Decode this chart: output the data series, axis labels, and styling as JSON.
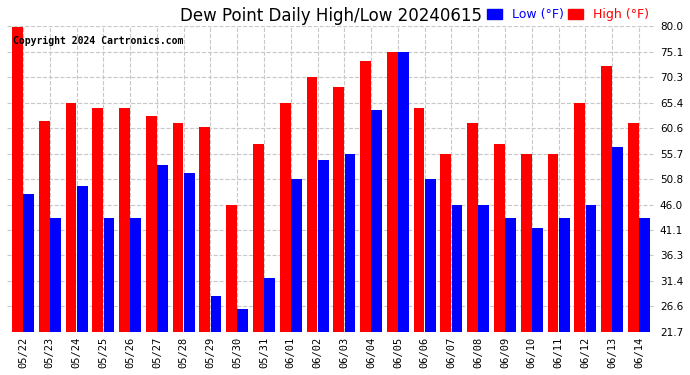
{
  "title": "Dew Point Daily High/Low 20240615",
  "copyright": "Copyright 2024 Cartronics.com",
  "legend_low": "Low (°F)",
  "legend_high": "High (°F)",
  "dates": [
    "05/22",
    "05/23",
    "05/24",
    "05/25",
    "05/26",
    "05/27",
    "05/28",
    "05/29",
    "05/30",
    "05/31",
    "06/01",
    "06/02",
    "06/03",
    "06/04",
    "06/05",
    "06/06",
    "06/07",
    "06/08",
    "06/09",
    "06/10",
    "06/11",
    "06/12",
    "06/13",
    "06/14"
  ],
  "high_values": [
    80.0,
    62.0,
    65.4,
    64.5,
    64.5,
    63.0,
    61.5,
    60.8,
    46.0,
    57.5,
    65.4,
    70.3,
    68.5,
    73.5,
    75.1,
    64.5,
    55.7,
    61.5,
    57.5,
    55.7,
    55.7,
    65.4,
    72.5,
    61.5
  ],
  "low_values": [
    48.0,
    43.5,
    49.5,
    43.5,
    43.5,
    53.5,
    52.0,
    28.5,
    26.0,
    32.0,
    50.8,
    54.5,
    55.7,
    64.0,
    75.1,
    50.8,
    46.0,
    46.0,
    43.5,
    41.5,
    43.5,
    46.0,
    57.0,
    43.5
  ],
  "high_color": "#ff0000",
  "low_color": "#0000ff",
  "bg_color": "#ffffff",
  "grid_color": "#c8c8c8",
  "ylim_min": 21.7,
  "ylim_max": 80.0,
  "yticks": [
    21.7,
    26.6,
    31.4,
    36.3,
    41.1,
    46.0,
    50.8,
    55.7,
    60.6,
    65.4,
    70.3,
    75.1,
    80.0
  ],
  "title_fontsize": 12,
  "copyright_fontsize": 7,
  "legend_fontsize": 9,
  "tick_fontsize": 7.5
}
